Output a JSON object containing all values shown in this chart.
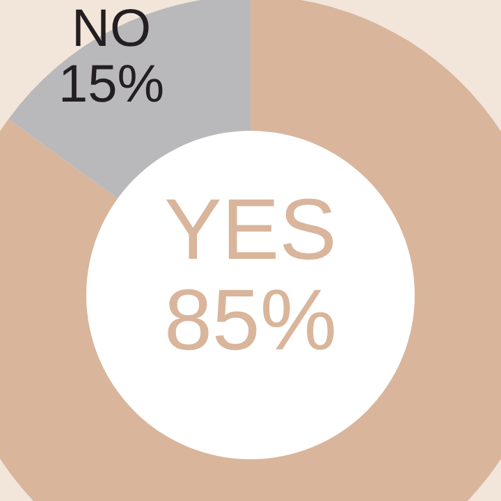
{
  "chart_data": {
    "type": "donut",
    "categories": [
      "YES",
      "NO"
    ],
    "values": [
      85,
      15
    ],
    "colors": [
      "#d9b59b",
      "#b9b9bb"
    ],
    "value_labels": [
      "85%",
      "15%"
    ]
  }
}
